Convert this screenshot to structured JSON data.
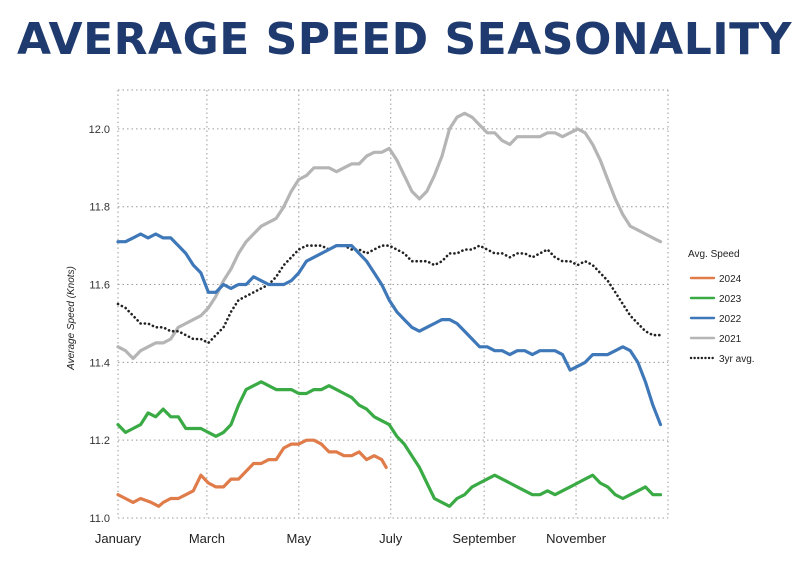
{
  "chart_data": {
    "type": "line",
    "title": "AVERAGE SPEED SEASONALITY",
    "ylabel": "Average Speed (Knots)",
    "xlabel": "",
    "ylim": [
      11.0,
      12.1
    ],
    "xlim": [
      0,
      365
    ],
    "y_ticks": [
      "11.0",
      "11.2",
      "11.4",
      "11.6",
      "11.8",
      "12.0"
    ],
    "y_tick_values": [
      11.0,
      11.2,
      11.4,
      11.6,
      11.8,
      12.0
    ],
    "x_ticks": [
      "January",
      "March",
      "May",
      "July",
      "September",
      "November"
    ],
    "x_tick_days": [
      0,
      59,
      120,
      181,
      243,
      304
    ],
    "grid": true,
    "legend": {
      "title": "Avg. Speed",
      "placement": "right"
    },
    "series": [
      {
        "name": "2024",
        "color": "#e07b4a",
        "style": "solid",
        "x": [
          0,
          5,
          10,
          15,
          22,
          27,
          30,
          35,
          40,
          45,
          50,
          55,
          60,
          65,
          70,
          75,
          80,
          85,
          90,
          95,
          100,
          105,
          110,
          115,
          120,
          125,
          130,
          135,
          140,
          145,
          150,
          155,
          160,
          165,
          170,
          175,
          178
        ],
        "y": [
          11.06,
          11.05,
          11.04,
          11.05,
          11.04,
          11.03,
          11.04,
          11.05,
          11.05,
          11.06,
          11.07,
          11.11,
          11.09,
          11.08,
          11.08,
          11.1,
          11.1,
          11.12,
          11.14,
          11.14,
          11.15,
          11.15,
          11.18,
          11.19,
          11.19,
          11.2,
          11.2,
          11.19,
          11.17,
          11.17,
          11.16,
          11.16,
          11.17,
          11.15,
          11.16,
          11.15,
          11.13
        ]
      },
      {
        "name": "2023",
        "color": "#3aaa45",
        "style": "solid",
        "x": [
          0,
          5,
          10,
          15,
          20,
          25,
          30,
          35,
          40,
          45,
          50,
          55,
          60,
          65,
          70,
          75,
          80,
          85,
          90,
          95,
          100,
          105,
          110,
          115,
          120,
          125,
          130,
          135,
          140,
          145,
          150,
          155,
          160,
          165,
          170,
          175,
          180,
          185,
          190,
          195,
          200,
          205,
          210,
          215,
          220,
          225,
          230,
          235,
          240,
          245,
          250,
          255,
          260,
          265,
          270,
          275,
          280,
          285,
          290,
          295,
          300,
          305,
          310,
          315,
          320,
          325,
          330,
          335,
          340,
          345,
          350,
          355,
          360
        ],
        "y": [
          11.24,
          11.22,
          11.23,
          11.24,
          11.27,
          11.26,
          11.28,
          11.26,
          11.26,
          11.23,
          11.23,
          11.23,
          11.22,
          11.21,
          11.22,
          11.24,
          11.29,
          11.33,
          11.34,
          11.35,
          11.34,
          11.33,
          11.33,
          11.33,
          11.32,
          11.32,
          11.33,
          11.33,
          11.34,
          11.33,
          11.32,
          11.31,
          11.29,
          11.28,
          11.26,
          11.25,
          11.24,
          11.21,
          11.19,
          11.16,
          11.13,
          11.09,
          11.05,
          11.04,
          11.03,
          11.05,
          11.06,
          11.08,
          11.09,
          11.1,
          11.11,
          11.1,
          11.09,
          11.08,
          11.07,
          11.06,
          11.06,
          11.07,
          11.06,
          11.07,
          11.08,
          11.09,
          11.1,
          11.11,
          11.09,
          11.08,
          11.06,
          11.05,
          11.06,
          11.07,
          11.08,
          11.06,
          11.06
        ]
      },
      {
        "name": "2022",
        "color": "#3f78b8",
        "style": "solid",
        "x": [
          0,
          5,
          10,
          15,
          20,
          25,
          30,
          35,
          40,
          45,
          50,
          55,
          60,
          65,
          70,
          75,
          80,
          85,
          90,
          95,
          100,
          105,
          110,
          115,
          120,
          125,
          130,
          135,
          140,
          145,
          150,
          155,
          160,
          165,
          170,
          175,
          180,
          185,
          190,
          195,
          200,
          205,
          210,
          215,
          220,
          225,
          230,
          235,
          240,
          245,
          250,
          255,
          260,
          265,
          270,
          275,
          280,
          285,
          290,
          295,
          300,
          305,
          310,
          315,
          320,
          325,
          330,
          335,
          340,
          345,
          350,
          355,
          360
        ],
        "y": [
          11.71,
          11.71,
          11.72,
          11.73,
          11.72,
          11.73,
          11.72,
          11.72,
          11.7,
          11.68,
          11.65,
          11.63,
          11.58,
          11.58,
          11.6,
          11.59,
          11.6,
          11.6,
          11.62,
          11.61,
          11.6,
          11.6,
          11.6,
          11.61,
          11.63,
          11.66,
          11.67,
          11.68,
          11.69,
          11.7,
          11.7,
          11.7,
          11.68,
          11.66,
          11.63,
          11.6,
          11.56,
          11.53,
          11.51,
          11.49,
          11.48,
          11.49,
          11.5,
          11.51,
          11.51,
          11.5,
          11.48,
          11.46,
          11.44,
          11.44,
          11.43,
          11.43,
          11.42,
          11.43,
          11.43,
          11.42,
          11.43,
          11.43,
          11.43,
          11.42,
          11.38,
          11.39,
          11.4,
          11.42,
          11.42,
          11.42,
          11.43,
          11.44,
          11.43,
          11.4,
          11.35,
          11.29,
          11.24
        ]
      },
      {
        "name": "2021",
        "color": "#b5b5b5",
        "style": "solid",
        "x": [
          0,
          5,
          10,
          15,
          20,
          25,
          30,
          35,
          40,
          45,
          50,
          55,
          60,
          65,
          70,
          75,
          80,
          85,
          90,
          95,
          100,
          105,
          110,
          115,
          120,
          125,
          130,
          135,
          140,
          145,
          150,
          155,
          160,
          165,
          170,
          175,
          180,
          185,
          190,
          195,
          200,
          205,
          210,
          215,
          220,
          225,
          230,
          235,
          240,
          245,
          250,
          255,
          260,
          265,
          270,
          275,
          280,
          285,
          290,
          295,
          300,
          305,
          310,
          315,
          320,
          325,
          330,
          335,
          340,
          345,
          350,
          355,
          360
        ],
        "y": [
          11.44,
          11.43,
          11.41,
          11.43,
          11.44,
          11.45,
          11.45,
          11.46,
          11.49,
          11.5,
          11.51,
          11.52,
          11.54,
          11.57,
          11.61,
          11.64,
          11.68,
          11.71,
          11.73,
          11.75,
          11.76,
          11.77,
          11.8,
          11.84,
          11.87,
          11.88,
          11.9,
          11.9,
          11.9,
          11.89,
          11.9,
          11.91,
          11.91,
          11.93,
          11.94,
          11.94,
          11.95,
          11.92,
          11.88,
          11.84,
          11.82,
          11.84,
          11.88,
          11.93,
          12.0,
          12.03,
          12.04,
          12.03,
          12.01,
          11.99,
          11.99,
          11.97,
          11.96,
          11.98,
          11.98,
          11.98,
          11.98,
          11.99,
          11.99,
          11.98,
          11.99,
          12.0,
          11.99,
          11.96,
          11.92,
          11.87,
          11.82,
          11.78,
          11.75,
          11.74,
          11.73,
          11.72,
          11.71
        ]
      },
      {
        "name": "3yr avg.",
        "color": "#222222",
        "style": "dotted",
        "x": [
          0,
          5,
          10,
          15,
          20,
          25,
          30,
          35,
          40,
          45,
          50,
          55,
          60,
          65,
          70,
          75,
          80,
          85,
          90,
          95,
          100,
          105,
          110,
          115,
          120,
          125,
          130,
          135,
          140,
          145,
          150,
          155,
          160,
          165,
          170,
          175,
          180,
          185,
          190,
          195,
          200,
          205,
          210,
          215,
          220,
          225,
          230,
          235,
          240,
          245,
          250,
          255,
          260,
          265,
          270,
          275,
          280,
          285,
          290,
          295,
          300,
          305,
          310,
          315,
          320,
          325,
          330,
          335,
          340,
          345,
          350,
          355,
          360
        ],
        "y": [
          11.55,
          11.54,
          11.52,
          11.5,
          11.5,
          11.49,
          11.49,
          11.48,
          11.48,
          11.47,
          11.46,
          11.46,
          11.45,
          11.47,
          11.49,
          11.53,
          11.56,
          11.57,
          11.58,
          11.59,
          11.6,
          11.62,
          11.65,
          11.67,
          11.69,
          11.7,
          11.7,
          11.7,
          11.69,
          11.7,
          11.7,
          11.69,
          11.69,
          11.68,
          11.69,
          11.7,
          11.7,
          11.69,
          11.68,
          11.66,
          11.66,
          11.66,
          11.65,
          11.66,
          11.68,
          11.68,
          11.69,
          11.69,
          11.7,
          11.69,
          11.68,
          11.68,
          11.67,
          11.68,
          11.68,
          11.67,
          11.68,
          11.69,
          11.67,
          11.66,
          11.66,
          11.65,
          11.66,
          11.65,
          11.63,
          11.61,
          11.58,
          11.55,
          11.52,
          11.5,
          11.48,
          11.47,
          11.47
        ]
      }
    ]
  }
}
